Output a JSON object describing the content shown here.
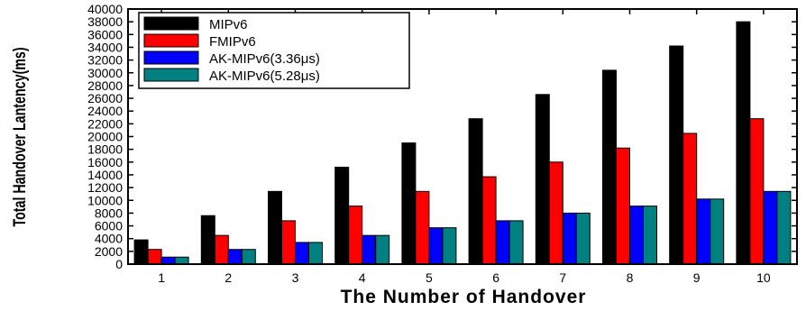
{
  "chart_data": {
    "type": "bar",
    "categories": [
      "1",
      "2",
      "3",
      "4",
      "5",
      "6",
      "7",
      "8",
      "9",
      "10"
    ],
    "series": [
      {
        "name": "MIPv6",
        "color": "#000000",
        "values": [
          3800,
          7600,
          11400,
          15200,
          19000,
          22800,
          26600,
          30400,
          34200,
          38000
        ]
      },
      {
        "name": "FMIPv6",
        "color": "#ff0000",
        "values": [
          2300,
          4500,
          6800,
          9100,
          11400,
          13700,
          16000,
          18200,
          20500,
          22800
        ]
      },
      {
        "name": "AK-MIPv6(3.36μs)",
        "color": "#0000ff",
        "values": [
          1100,
          2300,
          3400,
          4500,
          5700,
          6800,
          8000,
          9100,
          10200,
          11400
        ]
      },
      {
        "name": "AK-MIPv6(5.28μs)",
        "color": "#008080",
        "values": [
          1100,
          2300,
          3400,
          4500,
          5700,
          6800,
          8000,
          9100,
          10200,
          11400
        ]
      }
    ],
    "xlabel": "The Number of Handover",
    "ylabel": "Total Handover Lantency(ms)",
    "ylim": [
      0,
      40000
    ],
    "yticks": [
      "0",
      "2000",
      "4000",
      "6000",
      "8000",
      "10000",
      "12000",
      "14000",
      "16000",
      "18000",
      "20000",
      "22000",
      "24000",
      "26000",
      "28000",
      "30000",
      "32000",
      "34000",
      "36000",
      "38000",
      "40000"
    ],
    "legend_position": "top-left",
    "grid": false
  }
}
